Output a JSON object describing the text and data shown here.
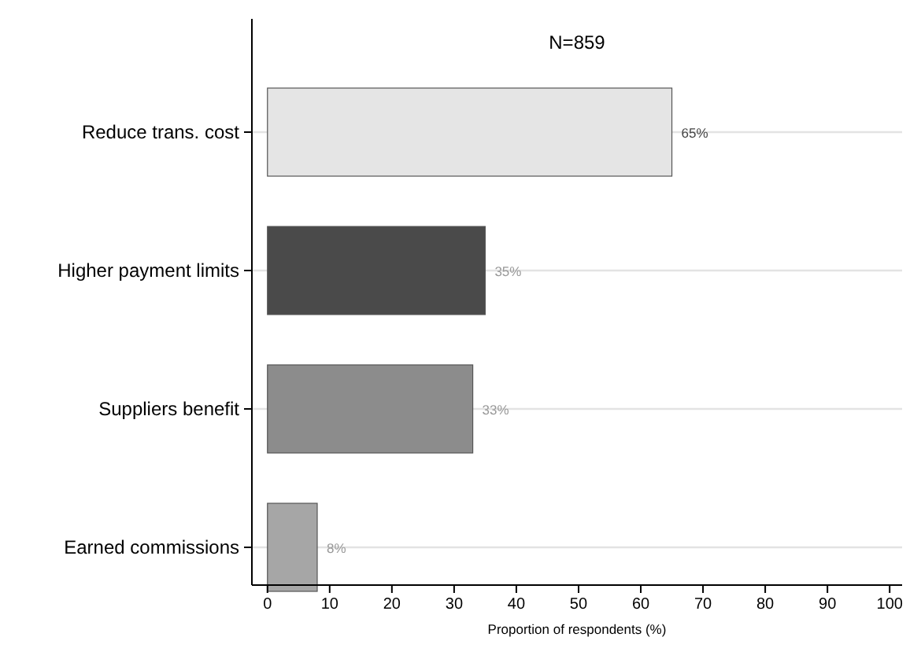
{
  "chart_data": {
    "type": "bar",
    "orientation": "horizontal",
    "title": "N=859",
    "xlabel": "Proportion of respondents (%)",
    "categories": [
      "Reduce trans. cost",
      "Higher payment limits",
      "Suppliers benefit",
      "Earned commissions"
    ],
    "values": [
      65,
      35,
      33,
      8
    ],
    "colors": [
      "#e5e5e5",
      "#4a4a4a",
      "#8c8c8c",
      "#a6a6a6"
    ],
    "value_labels": [
      "65%",
      "35%",
      "33%",
      "8%"
    ],
    "xlim": [
      -2.5,
      102
    ],
    "xticks": [
      0,
      10,
      20,
      30,
      40,
      50,
      60,
      70,
      80,
      90,
      100
    ],
    "grid": "y"
  }
}
